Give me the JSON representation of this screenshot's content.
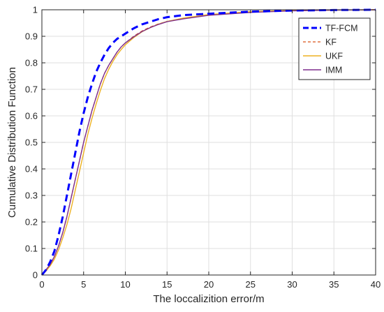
{
  "chart_data": {
    "type": "line",
    "title": "",
    "xlabel": "The loccalizition error/m",
    "ylabel": "Cumulative Distribution Function",
    "xlim": [
      0,
      40
    ],
    "ylim": [
      0,
      1
    ],
    "xticks": [
      0,
      5,
      10,
      15,
      20,
      25,
      30,
      35,
      40
    ],
    "yticks": [
      0,
      0.1,
      0.2,
      0.3,
      0.4,
      0.5,
      0.6,
      0.7,
      0.8,
      0.9,
      1
    ],
    "grid": true,
    "legend_position": "top-right",
    "series": [
      {
        "name": "TF-FCM",
        "color": "#0000ff",
        "line_style": "dashed",
        "x": [
          0,
          0.5,
          1,
          1.5,
          2,
          2.5,
          3,
          3.5,
          4,
          4.5,
          5,
          5.5,
          6,
          6.5,
          7,
          7.5,
          8,
          8.5,
          9,
          9.5,
          10,
          11,
          12,
          13,
          14,
          15,
          17,
          20,
          25,
          30,
          35,
          40
        ],
        "y": [
          0,
          0.02,
          0.05,
          0.09,
          0.15,
          0.22,
          0.3,
          0.38,
          0.46,
          0.54,
          0.61,
          0.67,
          0.72,
          0.765,
          0.8,
          0.83,
          0.855,
          0.875,
          0.89,
          0.9,
          0.91,
          0.93,
          0.945,
          0.955,
          0.965,
          0.972,
          0.98,
          0.985,
          0.993,
          0.997,
          0.999,
          1.0
        ]
      },
      {
        "name": "KF",
        "color": "#d95319",
        "line_style": "dashed",
        "x": [
          0,
          0.5,
          1,
          1.5,
          2,
          2.5,
          3,
          3.5,
          4,
          4.5,
          5,
          5.5,
          6,
          6.5,
          7,
          7.5,
          8,
          8.5,
          9,
          9.5,
          10,
          11,
          12,
          13,
          14,
          15,
          17,
          20,
          25,
          30,
          35,
          40
        ],
        "y": [
          0,
          0.02,
          0.04,
          0.07,
          0.11,
          0.16,
          0.22,
          0.29,
          0.36,
          0.43,
          0.5,
          0.56,
          0.62,
          0.67,
          0.72,
          0.76,
          0.79,
          0.815,
          0.84,
          0.86,
          0.875,
          0.9,
          0.92,
          0.935,
          0.947,
          0.956,
          0.968,
          0.981,
          0.992,
          0.997,
          0.999,
          1.0
        ]
      },
      {
        "name": "UKF",
        "color": "#edb120",
        "line_style": "solid",
        "x": [
          0,
          0.5,
          1,
          1.5,
          2,
          2.5,
          3,
          3.5,
          4,
          4.5,
          5,
          5.5,
          6,
          6.5,
          7,
          7.5,
          8,
          8.5,
          9,
          9.5,
          10,
          11,
          12,
          13,
          14,
          15,
          17,
          20,
          25,
          30,
          35,
          40
        ],
        "y": [
          0,
          0.015,
          0.035,
          0.06,
          0.095,
          0.14,
          0.19,
          0.25,
          0.32,
          0.39,
          0.46,
          0.53,
          0.59,
          0.645,
          0.695,
          0.74,
          0.775,
          0.805,
          0.83,
          0.85,
          0.868,
          0.895,
          0.917,
          0.933,
          0.946,
          0.956,
          0.969,
          0.982,
          0.993,
          0.997,
          0.999,
          1.0
        ]
      },
      {
        "name": "IMM",
        "color": "#7e2f8e",
        "line_style": "solid",
        "x": [
          0,
          0.5,
          1,
          1.5,
          2,
          2.5,
          3,
          3.5,
          4,
          4.5,
          5,
          5.5,
          6,
          6.5,
          7,
          7.5,
          8,
          8.5,
          9,
          9.5,
          10,
          11,
          12,
          13,
          14,
          15,
          17,
          20,
          25,
          30,
          35,
          40
        ],
        "y": [
          0,
          0.02,
          0.04,
          0.07,
          0.11,
          0.16,
          0.22,
          0.29,
          0.36,
          0.43,
          0.5,
          0.56,
          0.62,
          0.67,
          0.72,
          0.76,
          0.79,
          0.815,
          0.84,
          0.86,
          0.875,
          0.898,
          0.918,
          0.933,
          0.945,
          0.955,
          0.966,
          0.979,
          0.99,
          0.996,
          0.999,
          1.0
        ]
      }
    ]
  }
}
